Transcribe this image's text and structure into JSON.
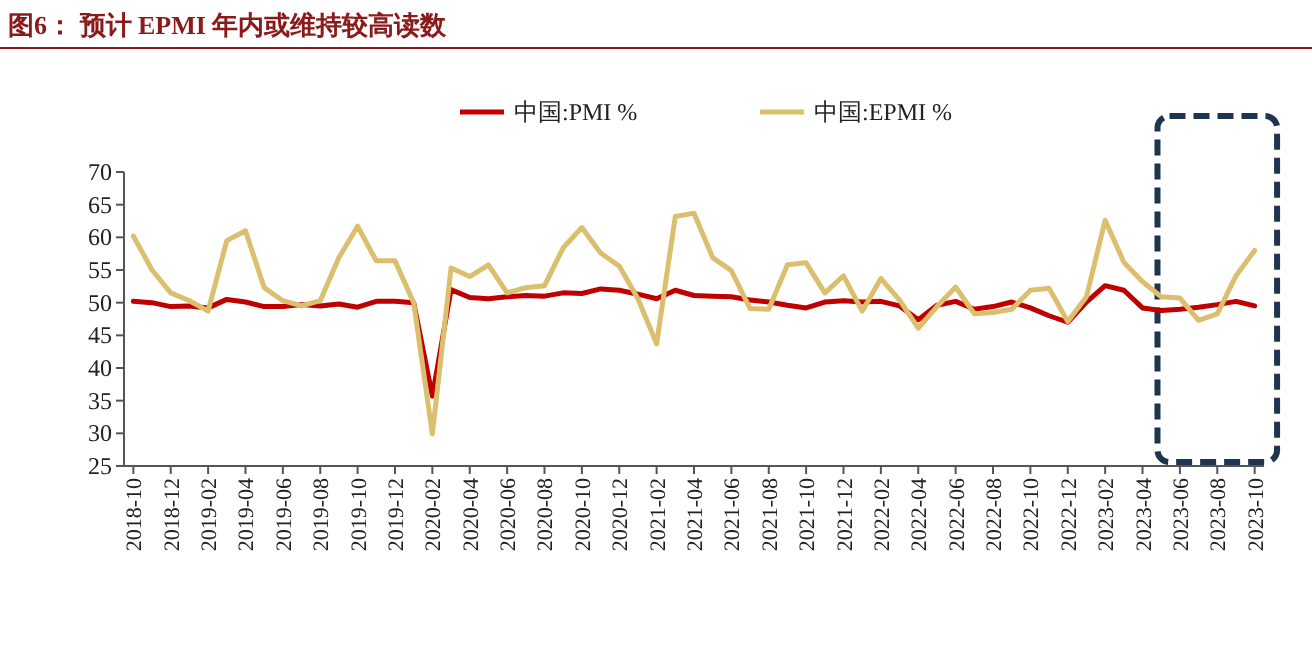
{
  "chart_data": {
    "type": "line",
    "title": "图6： 预计 EPMI 年内或维持较高读数",
    "categories": [
      "2018-10",
      null,
      "2018-12",
      null,
      "2019-02",
      null,
      "2019-04",
      null,
      "2019-06",
      null,
      "2019-08",
      null,
      "2019-10",
      null,
      "2019-12",
      null,
      "2020-02",
      null,
      "2020-04",
      null,
      "2020-06",
      null,
      "2020-08",
      null,
      "2020-10",
      null,
      "2020-12",
      null,
      "2021-02",
      null,
      "2021-04",
      null,
      "2021-06",
      null,
      "2021-08",
      null,
      "2021-10",
      null,
      "2021-12",
      null,
      "2022-02",
      null,
      "2022-04",
      null,
      "2022-06",
      null,
      "2022-08",
      null,
      "2022-10",
      null,
      "2022-12",
      null,
      "2023-02",
      null,
      "2023-04",
      null,
      "2023-06",
      null,
      "2023-08",
      null,
      "2023-10"
    ],
    "series": [
      {
        "name": "中国:PMI %",
        "color": "#c00000",
        "values": [
          50.2,
          50.0,
          49.4,
          49.5,
          49.2,
          50.5,
          50.1,
          49.4,
          49.4,
          49.7,
          49.5,
          49.8,
          49.3,
          50.2,
          50.2,
          50.0,
          35.7,
          52.0,
          50.8,
          50.6,
          50.9,
          51.1,
          51.0,
          51.5,
          51.4,
          52.1,
          51.9,
          51.3,
          50.6,
          51.9,
          51.1,
          51.0,
          50.9,
          50.4,
          50.1,
          49.6,
          49.2,
          50.1,
          50.3,
          50.1,
          50.2,
          49.5,
          47.4,
          49.6,
          50.2,
          49.0,
          49.4,
          50.1,
          49.2,
          48.0,
          47.0,
          50.1,
          52.6,
          51.9,
          49.2,
          48.8,
          49.0,
          49.3,
          49.7,
          50.2,
          49.5
        ]
      },
      {
        "name": "中国:EPMI %",
        "color": "#dcbf6e",
        "values": [
          60.2,
          55.0,
          51.5,
          50.3,
          48.7,
          59.5,
          61.0,
          52.3,
          50.3,
          49.5,
          50.3,
          56.9,
          61.7,
          56.4,
          56.4,
          50.0,
          29.9,
          55.3,
          54.0,
          55.8,
          51.5,
          52.3,
          52.6,
          58.4,
          61.5,
          57.6,
          55.6,
          50.6,
          43.7,
          63.2,
          63.7,
          56.9,
          54.9,
          49.1,
          49.0,
          55.8,
          56.1,
          51.5,
          54.1,
          48.7,
          53.7,
          50.4,
          46.1,
          49.4,
          52.4,
          48.3,
          48.5,
          49.0,
          51.9,
          52.2,
          47.1,
          50.9,
          62.6,
          56.2,
          53.2,
          50.9,
          50.7,
          47.3,
          48.3,
          54.1,
          58.0
        ]
      }
    ],
    "ylim": [
      25,
      70
    ],
    "yticks": [
      25,
      30,
      35,
      40,
      45,
      50,
      55,
      60,
      65,
      70
    ],
    "legend": "top"
  }
}
